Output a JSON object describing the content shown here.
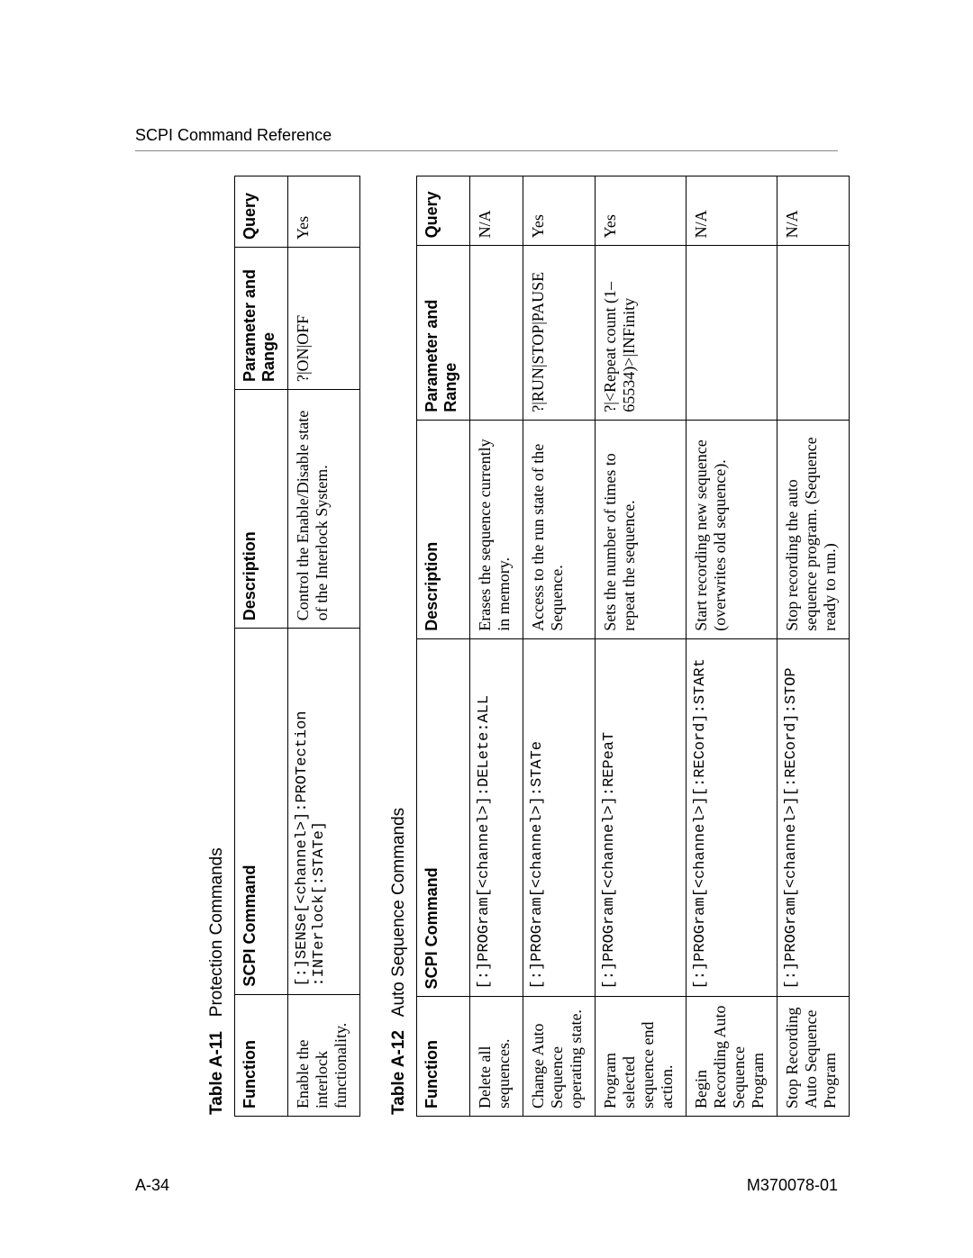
{
  "header": {
    "title": "SCPI Command Reference"
  },
  "footer": {
    "left": "A-34",
    "right": "M370078-01"
  },
  "table1": {
    "number": "Table A-11",
    "name": "Protection Commands",
    "headers": [
      "Function",
      "SCPI Command",
      "Description",
      "Parameter and Range",
      "Query"
    ],
    "rows": [
      {
        "func": "Enable the interlock functionality.",
        "cmd": "[:]SENSe[<channel>]:PROTection\n:INTerlock[:STATe]",
        "desc": "Control the Enable/Disable state of the Interlock System.",
        "param": "?|ON|OFF",
        "query": "Yes"
      }
    ]
  },
  "table2": {
    "number": "Table A-12",
    "name": "Auto Sequence Commands",
    "headers": [
      "Function",
      "SCPI Command",
      "Description",
      "Parameter and Range",
      "Query"
    ],
    "rows": [
      {
        "func": "Delete all sequences.",
        "cmd": "[:]PROGram[<channel>]:DELete:ALL",
        "desc": "Erases the sequence currently in memory.",
        "param": "",
        "query": "N/A"
      },
      {
        "func": "Change Auto Sequence operating state.",
        "cmd": "[:]PROGram[<channel>]:STATe",
        "desc": "Access to the run state of the Sequence.",
        "param": "?|RUN|STOP|PAUSE",
        "query": "Yes"
      },
      {
        "func": "Program selected sequence end action.",
        "cmd": "[:]PROGram[<channel>]:REPeaT",
        "desc": "Sets the number of times to repeat the sequence.",
        "param": "?|<Repeat count (1–65534)>|INFinity",
        "query": "Yes"
      },
      {
        "func": "Begin Recording Auto Sequence Program",
        "cmd": "[:]PROGram[<channel>][:RECord]:STARt",
        "desc": "Start recording new sequence (overwrites old sequence).",
        "param": "",
        "query": "N/A"
      },
      {
        "func": "Stop Recording Auto Sequence Program",
        "cmd": "[:]PROGram[<channel>][:RECord]:STOP",
        "desc": "Stop recording the auto sequence program. (Sequence ready to run.)",
        "param": "",
        "query": "N/A"
      }
    ]
  }
}
